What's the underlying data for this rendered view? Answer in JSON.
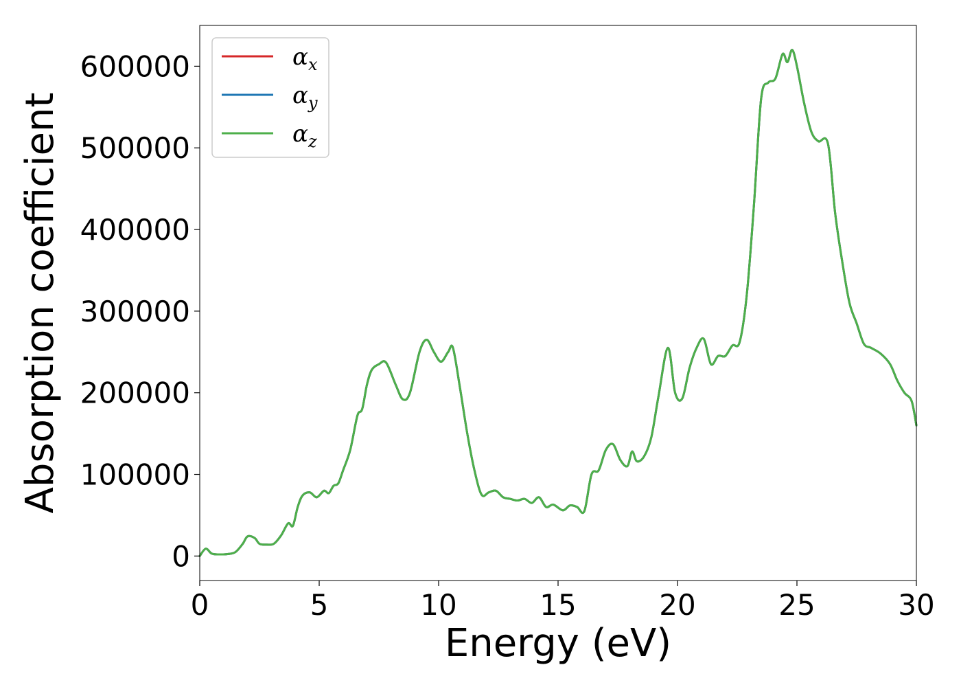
{
  "chart_data": {
    "type": "line",
    "title": "",
    "xlabel": "Energy (eV)",
    "ylabel": "Absorption coefficient",
    "xlim": [
      0,
      30
    ],
    "ylim": [
      -30000,
      650000
    ],
    "x_ticks": [
      0,
      5,
      10,
      15,
      20,
      25,
      30
    ],
    "y_ticks": [
      0,
      100000,
      200000,
      300000,
      400000,
      500000,
      600000
    ],
    "grid": false,
    "legend_position": "top-left",
    "series": [
      {
        "name": "α",
        "subscript": "x",
        "color": "#d62728"
      },
      {
        "name": "α",
        "subscript": "y",
        "color": "#1f77b4"
      },
      {
        "name": "α",
        "subscript": "z",
        "color": "#4daf4a"
      }
    ],
    "x": [
      0,
      0.25,
      0.5,
      0.8,
      1.2,
      1.5,
      1.8,
      2.0,
      2.3,
      2.5,
      2.8,
      3.1,
      3.4,
      3.7,
      3.9,
      4.1,
      4.3,
      4.6,
      4.9,
      5.2,
      5.4,
      5.6,
      5.8,
      6.0,
      6.3,
      6.6,
      6.8,
      7.0,
      7.2,
      7.5,
      7.8,
      8.2,
      8.5,
      8.8,
      9.2,
      9.5,
      9.8,
      10.1,
      10.4,
      10.6,
      10.9,
      11.2,
      11.5,
      11.8,
      12.1,
      12.4,
      12.7,
      13.0,
      13.3,
      13.6,
      13.9,
      14.2,
      14.5,
      14.8,
      15.2,
      15.5,
      15.8,
      16.1,
      16.4,
      16.7,
      17.0,
      17.3,
      17.6,
      17.9,
      18.1,
      18.3,
      18.6,
      18.9,
      19.2,
      19.6,
      19.9,
      20.2,
      20.5,
      20.8,
      21.1,
      21.4,
      21.7,
      22.0,
      22.3,
      22.6,
      22.9,
      23.2,
      23.5,
      23.8,
      24.1,
      24.4,
      24.6,
      24.8,
      25.0,
      25.3,
      25.6,
      25.9,
      26.3,
      26.6,
      26.9,
      27.2,
      27.5,
      27.8,
      28.1,
      28.5,
      28.9,
      29.2,
      29.5,
      29.8,
      30.0
    ],
    "values": [
      0,
      9000,
      3000,
      2000,
      2500,
      5000,
      15000,
      24000,
      22000,
      15000,
      14000,
      15000,
      25000,
      40000,
      37000,
      60000,
      74000,
      78000,
      72000,
      80000,
      77000,
      86000,
      89000,
      105000,
      130000,
      172000,
      180000,
      210000,
      228000,
      235000,
      237000,
      210000,
      192000,
      200000,
      250000,
      265000,
      250000,
      238000,
      250000,
      255000,
      205000,
      150000,
      105000,
      75000,
      78000,
      80000,
      72000,
      70000,
      68000,
      70000,
      65000,
      72000,
      60000,
      63000,
      56000,
      62000,
      60000,
      55000,
      100000,
      105000,
      130000,
      137000,
      118000,
      110000,
      128000,
      116000,
      122000,
      145000,
      195000,
      255000,
      200000,
      193000,
      230000,
      255000,
      266000,
      235000,
      245000,
      245000,
      258000,
      262000,
      320000,
      430000,
      560000,
      580000,
      585000,
      615000,
      605000,
      620000,
      600000,
      555000,
      520000,
      508000,
      505000,
      420000,
      360000,
      310000,
      285000,
      260000,
      255000,
      248000,
      235000,
      215000,
      200000,
      190000,
      160000
    ]
  }
}
